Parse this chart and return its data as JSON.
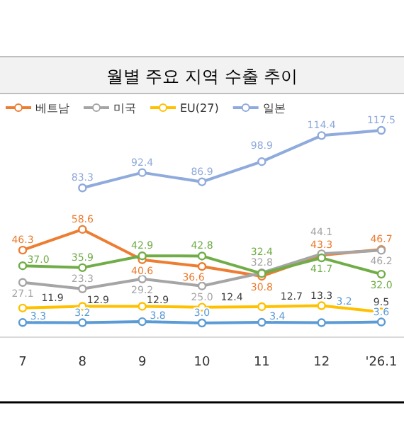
{
  "chart_data": {
    "type": "line",
    "title": "월별 주요 지역 수출 추이",
    "categories": [
      "7",
      "8",
      "9",
      "10",
      "11",
      "12",
      "'26.1"
    ],
    "legend": "top",
    "marker": "circle",
    "series": [
      {
        "name": "베트남",
        "color": "#ed7d31",
        "values": [
          46.3,
          58.6,
          40.6,
          36.6,
          30.8,
          43.3,
          46.7
        ],
        "value_labels": [
          "46.3",
          "58.6",
          "40.6",
          "36.6",
          "30.8",
          "43.3",
          "46.7"
        ]
      },
      {
        "name": "미국",
        "color": "#a5a5a5",
        "values": [
          27.1,
          23.3,
          29.2,
          25.0,
          32.8,
          44.1,
          46.2
        ],
        "value_labels": [
          "27.1",
          "23.3",
          "29.2",
          "25.0",
          "32.8",
          "44.1",
          "46.2"
        ]
      },
      {
        "name": "EU(27)",
        "color": "#ffc000",
        "values": [
          11.9,
          12.9,
          12.9,
          12.4,
          12.7,
          13.3,
          9.5
        ],
        "value_labels": [
          "11.9",
          "12.9",
          "12.9",
          "12.4",
          "12.7",
          "13.3",
          "9.5"
        ]
      },
      {
        "name": "일본",
        "color": "#8faadc",
        "values": [
          null,
          83.3,
          92.4,
          86.9,
          98.9,
          114.4,
          117.5
        ],
        "value_labels": [
          null,
          "83.3",
          "92.4",
          "86.9",
          "98.9",
          "114.4",
          "117.5"
        ]
      },
      {
        "color": "#70ad47",
        "values": [
          37.0,
          35.9,
          42.9,
          42.8,
          32.4,
          41.7,
          32.0
        ],
        "value_labels": [
          "37.0",
          "35.9",
          "42.9",
          "42.8",
          "32.4",
          "41.7",
          "32.0"
        ]
      },
      {
        "color": "#5b9bd5",
        "values": [
          3.3,
          3.2,
          3.8,
          3.0,
          3.4,
          3.2,
          3.6
        ],
        "value_labels": [
          "3.3",
          "3.2",
          "3.8",
          "3.0",
          "3.4",
          "3.2",
          "3.6"
        ]
      }
    ]
  }
}
